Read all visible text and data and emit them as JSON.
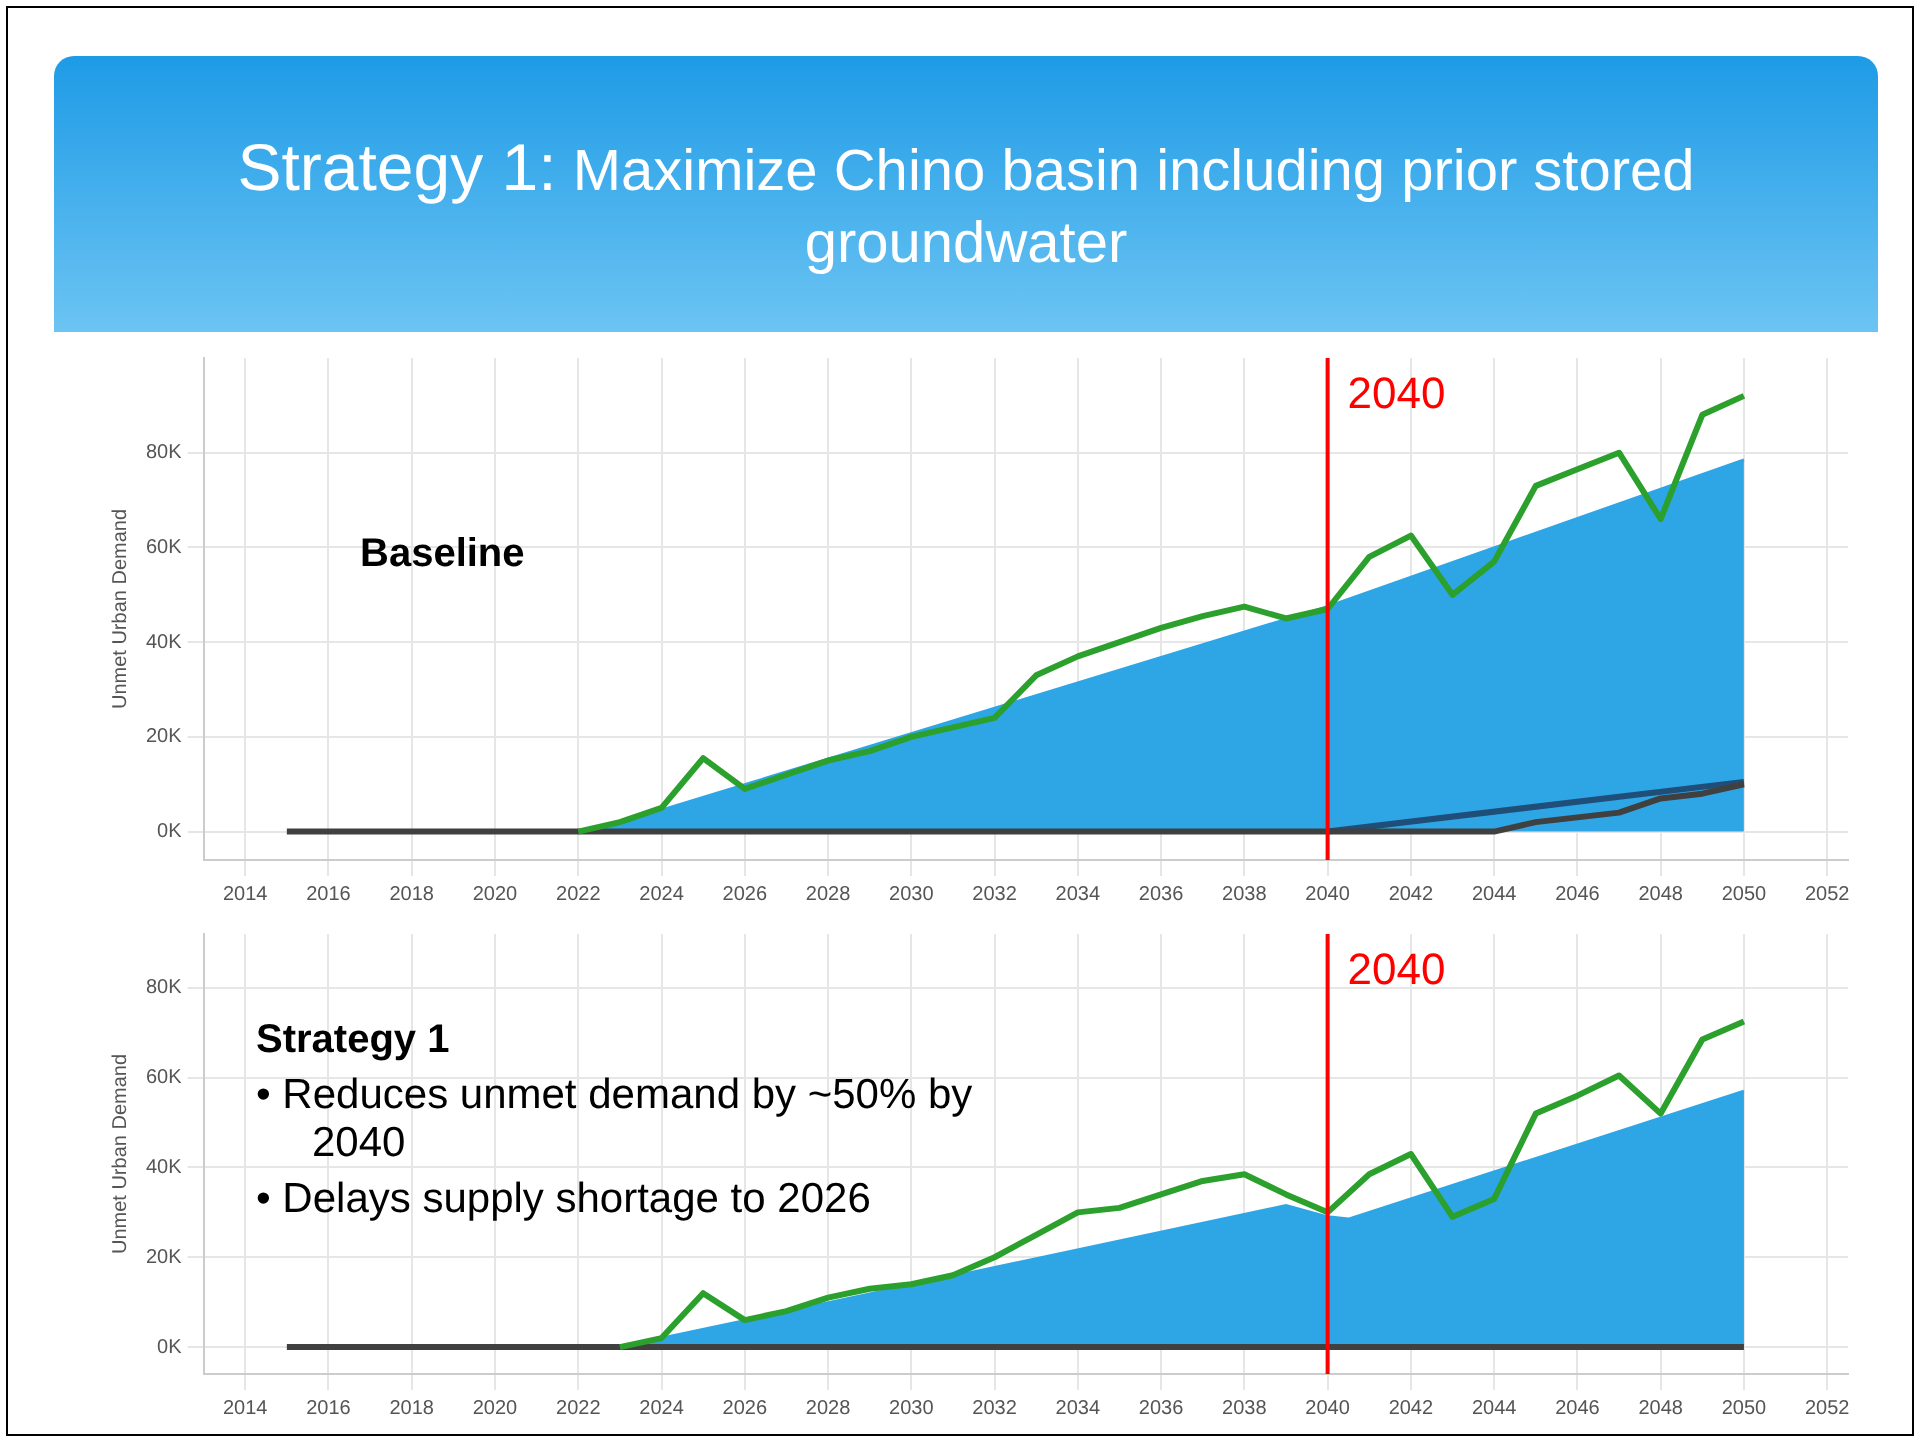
{
  "chart_data": [
    {
      "type": "line",
      "title": "Strategy 1: Maximize Chino basin including prior stored groundwater",
      "ylabel": "Unmet Urban Demand",
      "annotations": [
        "Baseline"
      ],
      "xlim": [
        2013,
        2052.5
      ],
      "xticks": [
        2014,
        2016,
        2018,
        2020,
        2022,
        2024,
        2026,
        2028,
        2030,
        2032,
        2034,
        2036,
        2038,
        2040,
        2042,
        2044,
        2046,
        2048,
        2050,
        2052
      ],
      "ylim": [
        -6000,
        100000
      ],
      "yticks": [
        {
          "value": 0,
          "label": "0K"
        },
        {
          "value": 20000,
          "label": "20K"
        },
        {
          "value": 40000,
          "label": "40K"
        },
        {
          "value": 60000,
          "label": "60K"
        },
        {
          "value": 80000,
          "label": "80K"
        }
      ],
      "grid": true,
      "legend": false,
      "marker": "none",
      "ref_lines": [
        {
          "axis": "x",
          "value": 2040,
          "label": "2040",
          "color": "#ff0000"
        }
      ],
      "series": [
        {
          "type": "area",
          "color": "#2ea6e6",
          "x": [
            2022.3,
            2040,
            2050
          ],
          "values": [
            0,
            47500,
            78500
          ]
        },
        {
          "color": "#1f4e79",
          "x": [
            2040,
            2050
          ],
          "values": [
            0,
            10500
          ]
        },
        {
          "color": "#404040",
          "x": [
            2015,
            2020,
            2025,
            2030,
            2035,
            2040,
            2044,
            2045,
            2046,
            2047,
            2048,
            2049,
            2050
          ],
          "values": [
            0,
            0,
            0,
            0,
            0,
            0,
            0,
            2000,
            3000,
            4000,
            7000,
            8000,
            10000
          ]
        },
        {
          "color": "#2ca02c",
          "x": [
            2022,
            2023,
            2024,
            2025,
            2026,
            2027,
            2028,
            2029,
            2030,
            2031,
            2032,
            2033,
            2034,
            2035,
            2036,
            2037,
            2038,
            2039,
            2040,
            2041,
            2042,
            2043,
            2044,
            2045,
            2046,
            2047,
            2048,
            2049,
            2050
          ],
          "values": [
            0,
            2000,
            5000,
            15500,
            9000,
            12000,
            15000,
            17000,
            20000,
            22000,
            24000,
            33000,
            37000,
            40000,
            43000,
            45500,
            47500,
            45000,
            47000,
            58000,
            62500,
            50000,
            57000,
            73000,
            76500,
            80000,
            66000,
            88000,
            92000
          ]
        }
      ]
    },
    {
      "type": "line",
      "ylabel": "Unmet Urban Demand",
      "annotations": [
        "Strategy 1",
        "• Reduces unmet demand by ~50% by 2040",
        "• Delays supply shortage to 2026"
      ],
      "xlim": [
        2013,
        2052.5
      ],
      "xticks": [
        2014,
        2016,
        2018,
        2020,
        2022,
        2024,
        2026,
        2028,
        2030,
        2032,
        2034,
        2036,
        2038,
        2040,
        2042,
        2044,
        2046,
        2048,
        2050,
        2052
      ],
      "ylim": [
        -6000,
        92000
      ],
      "yticks": [
        {
          "value": 0,
          "label": "0K"
        },
        {
          "value": 20000,
          "label": "20K"
        },
        {
          "value": 40000,
          "label": "40K"
        },
        {
          "value": 60000,
          "label": "60K"
        },
        {
          "value": 80000,
          "label": "80K"
        }
      ],
      "grid": true,
      "legend": false,
      "marker": "none",
      "ref_lines": [
        {
          "axis": "x",
          "value": 2040,
          "label": "2040",
          "color": "#ff0000"
        }
      ],
      "series": [
        {
          "type": "area",
          "color": "#2ea6e6",
          "x": [
            2023,
            2039,
            2040,
            2040.5,
            2050
          ],
          "values": [
            0,
            31500,
            29000,
            28500,
            57000
          ]
        },
        {
          "color": "#404040",
          "x": [
            2015,
            2020,
            2025,
            2030,
            2035,
            2040,
            2045,
            2050
          ],
          "values": [
            0,
            0,
            0,
            0,
            0,
            0,
            0,
            0
          ]
        },
        {
          "color": "#2ca02c",
          "x": [
            2023,
            2024,
            2025,
            2026,
            2027,
            2028,
            2029,
            2030,
            2031,
            2032,
            2033,
            2034,
            2035,
            2036,
            2037,
            2038,
            2039,
            2040,
            2041,
            2042,
            2043,
            2044,
            2045,
            2046,
            2047,
            2048,
            2049,
            2050
          ],
          "values": [
            0,
            2000,
            12000,
            6000,
            8000,
            11000,
            13000,
            14000,
            16000,
            20000,
            25000,
            30000,
            31000,
            34000,
            37000,
            38500,
            34000,
            30000,
            38500,
            43000,
            29000,
            33000,
            52000,
            56000,
            60500,
            52000,
            68500,
            72500
          ]
        }
      ]
    }
  ]
}
